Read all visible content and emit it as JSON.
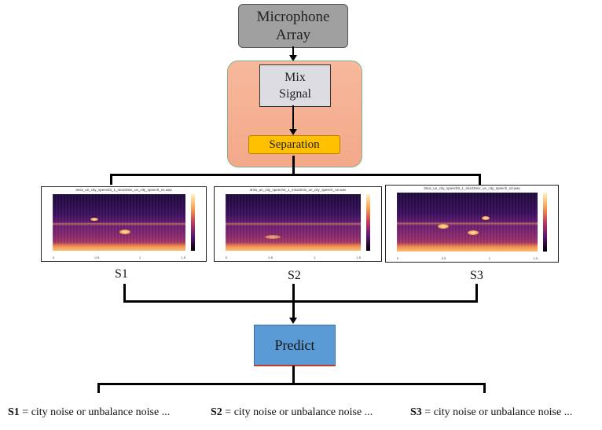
{
  "nodes": {
    "microphone_array": "Microphone Array",
    "mix_signal": "Mix Signal",
    "separation": "Separation",
    "predict": "Predict"
  },
  "spectrograms": [
    {
      "label": "S1",
      "title": "3mix_un_city_speech3_1_mix23mix_un_city_speech_s1.wav",
      "x_ticks": [
        "0",
        "0.5",
        "1",
        "1.5"
      ]
    },
    {
      "label": "S2",
      "title": "3mix_un_city_speech3_1_mix23mix_un_city_speech_s2.wav",
      "x_ticks": [
        "0",
        "0.5",
        "1",
        "1.5"
      ]
    },
    {
      "label": "S3",
      "title": "3mix_un_city_speech0_1_mix23mix_un_city_speech_s3.wav",
      "x_ticks": [
        "0",
        "0.5",
        "1",
        "1.5"
      ]
    }
  ],
  "results": [
    {
      "source": "S1",
      "text": " = city noise or unbalance noise ..."
    },
    {
      "source": "S2",
      "text": " = city noise or unbalance noise ..."
    },
    {
      "source": "S3",
      "text": " = city noise or unbalance noise ..."
    }
  ],
  "colors": {
    "mic": "#a0a0a0",
    "panel": "#f5b093",
    "separation": "#ffc000",
    "predict": "#5b9bd5"
  }
}
